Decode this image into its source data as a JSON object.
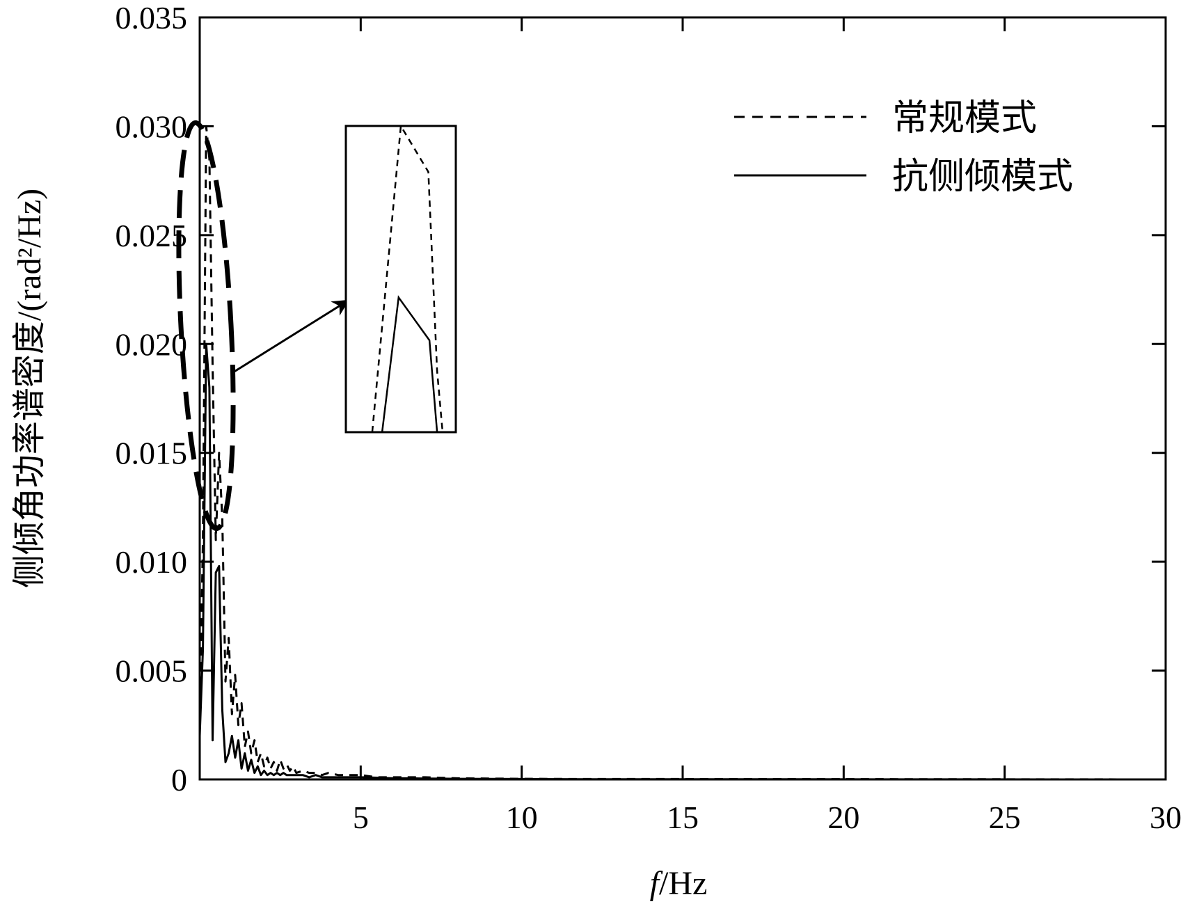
{
  "chart_data": {
    "type": "line",
    "xlabel": "f/Hz",
    "xlabel_italic_part": "f",
    "xlabel_rest": "/Hz",
    "ylabel": "侧倾角功率谱密度/(rad²/Hz)",
    "xlim": [
      0,
      30
    ],
    "ylim": [
      0,
      0.035
    ],
    "xticks": [
      5,
      10,
      15,
      20,
      25,
      30
    ],
    "xtick_labels": [
      "5",
      "10",
      "15",
      "20",
      "25",
      "30"
    ],
    "yticks": [
      0,
      0.005,
      0.01,
      0.015,
      0.02,
      0.025,
      0.03,
      0.035
    ],
    "ytick_labels": [
      "0",
      "0.005",
      "0.010",
      "0.015",
      "0.020",
      "0.025",
      "0.030",
      "0.035"
    ],
    "grid": false,
    "legend_position": "top-right",
    "series": [
      {
        "name": "常规模式",
        "style": "dashed",
        "color": "#000000",
        "x": [
          0.0,
          0.1,
          0.2,
          0.3,
          0.4,
          0.5,
          0.6,
          0.7,
          0.8,
          0.9,
          1.0,
          1.1,
          1.2,
          1.3,
          1.4,
          1.5,
          1.6,
          1.7,
          1.8,
          1.9,
          2.0,
          2.1,
          2.2,
          2.3,
          2.4,
          2.5,
          2.6,
          2.7,
          2.8,
          2.9,
          3.0,
          3.2,
          3.4,
          3.6,
          3.8,
          4.0,
          4.3,
          4.6,
          5.0,
          5.5,
          6.0,
          6.5,
          7.0,
          8.0,
          10.0,
          12.0,
          14.0,
          30.0
        ],
        "y": [
          0.003,
          0.011,
          0.03,
          0.0285,
          0.019,
          0.011,
          0.015,
          0.012,
          0.0045,
          0.0065,
          0.003,
          0.0048,
          0.0025,
          0.0035,
          0.0015,
          0.0022,
          0.0012,
          0.0018,
          0.0008,
          0.0012,
          0.0006,
          0.001,
          0.0005,
          0.0008,
          0.0004,
          0.0009,
          0.0005,
          0.0007,
          0.0004,
          0.0006,
          0.0003,
          0.0004,
          0.0003,
          0.0003,
          0.0002,
          0.0003,
          0.0002,
          0.0002,
          0.0002,
          0.0001,
          0.0001,
          0.0001,
          0.0001,
          5e-05,
          3e-05,
          2e-05,
          2e-05,
          0.0
        ]
      },
      {
        "name": "抗侧倾模式",
        "style": "solid",
        "color": "#000000",
        "x": [
          0.0,
          0.1,
          0.2,
          0.3,
          0.4,
          0.5,
          0.6,
          0.7,
          0.8,
          0.9,
          1.0,
          1.1,
          1.2,
          1.3,
          1.4,
          1.5,
          1.6,
          1.7,
          1.8,
          1.9,
          2.0,
          2.1,
          2.2,
          2.3,
          2.4,
          2.5,
          2.6,
          2.7,
          2.8,
          2.9,
          3.0,
          3.2,
          3.4,
          3.6,
          3.8,
          4.0,
          4.3,
          4.6,
          5.0,
          5.5,
          6.0,
          6.5,
          7.0,
          8.0,
          10.0,
          12.0,
          14.0,
          30.0
        ],
        "y": [
          0.002,
          0.006,
          0.02,
          0.018,
          0.0018,
          0.0095,
          0.0098,
          0.0032,
          0.0008,
          0.0012,
          0.002,
          0.001,
          0.0018,
          0.0005,
          0.0012,
          0.0004,
          0.0009,
          0.0003,
          0.0006,
          0.0002,
          0.0004,
          0.0002,
          0.0003,
          0.0002,
          0.0003,
          0.0002,
          0.0003,
          0.0002,
          0.0002,
          0.0002,
          0.0002,
          0.0002,
          0.0001,
          0.0002,
          0.0001,
          0.0001,
          0.0001,
          0.0001,
          0.0001,
          8e-05,
          5e-05,
          5e-05,
          4e-05,
          3e-05,
          2e-05,
          1e-05,
          1e-05,
          0.0
        ]
      }
    ],
    "inset": {
      "description_free": true,
      "dashed_path": [
        [
          0.24,
          0.0
        ],
        [
          0.5,
          1.0
        ],
        [
          0.75,
          0.85
        ],
        [
          0.83,
          0.2
        ],
        [
          0.88,
          0.0
        ]
      ],
      "solid_path": [
        [
          0.33,
          0.0
        ],
        [
          0.48,
          0.44
        ],
        [
          0.76,
          0.3
        ],
        [
          0.83,
          0.0
        ]
      ]
    }
  }
}
